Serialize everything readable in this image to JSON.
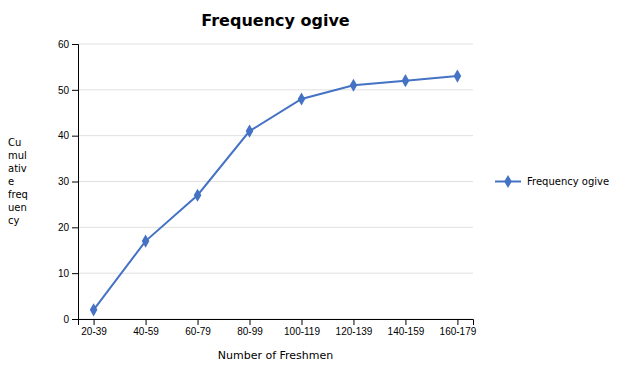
{
  "chart_data": {
    "type": "line",
    "title": "Frequency ogive",
    "xlabel": "Number of Freshmen",
    "ylabel": [
      "Cu",
      "mul",
      "ativ",
      "e",
      "freq",
      "uen",
      "cy"
    ],
    "categories": [
      "20-39",
      "40-59",
      "60-79",
      "80-99",
      "100-119",
      "120-139",
      "140-159",
      "160-179"
    ],
    "series": [
      {
        "name": "Frequency ogive",
        "color": "#4472C4",
        "marker": "diamond",
        "values": [
          2,
          17,
          27,
          41,
          48,
          51,
          52,
          53
        ]
      }
    ],
    "ylim": [
      0,
      60
    ],
    "yticks": [
      0,
      10,
      20,
      30,
      40,
      50,
      60
    ],
    "grid": true,
    "legend": "right"
  }
}
